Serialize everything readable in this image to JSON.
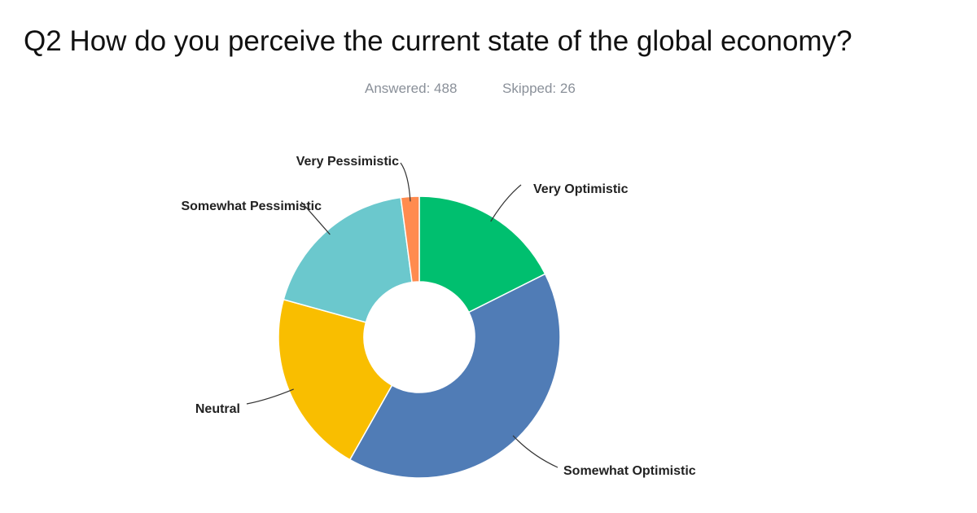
{
  "chart_data": {
    "type": "pie",
    "title": "Q2 How do you perceive the current state of the global economy?",
    "answered": "Answered: 488",
    "skipped": "Skipped: 26",
    "categories": [
      "Very Optimistic",
      "Somewhat Optimistic",
      "Neutral",
      "Somewhat Pessimistic",
      "Very Pessimistic"
    ],
    "values": [
      17.6,
      40.6,
      21.1,
      18.6,
      2.1
    ],
    "colors": [
      "#00bf6f",
      "#507cb6",
      "#f9be00",
      "#6bc8cd",
      "#ff8b4f"
    ],
    "donut": true
  }
}
